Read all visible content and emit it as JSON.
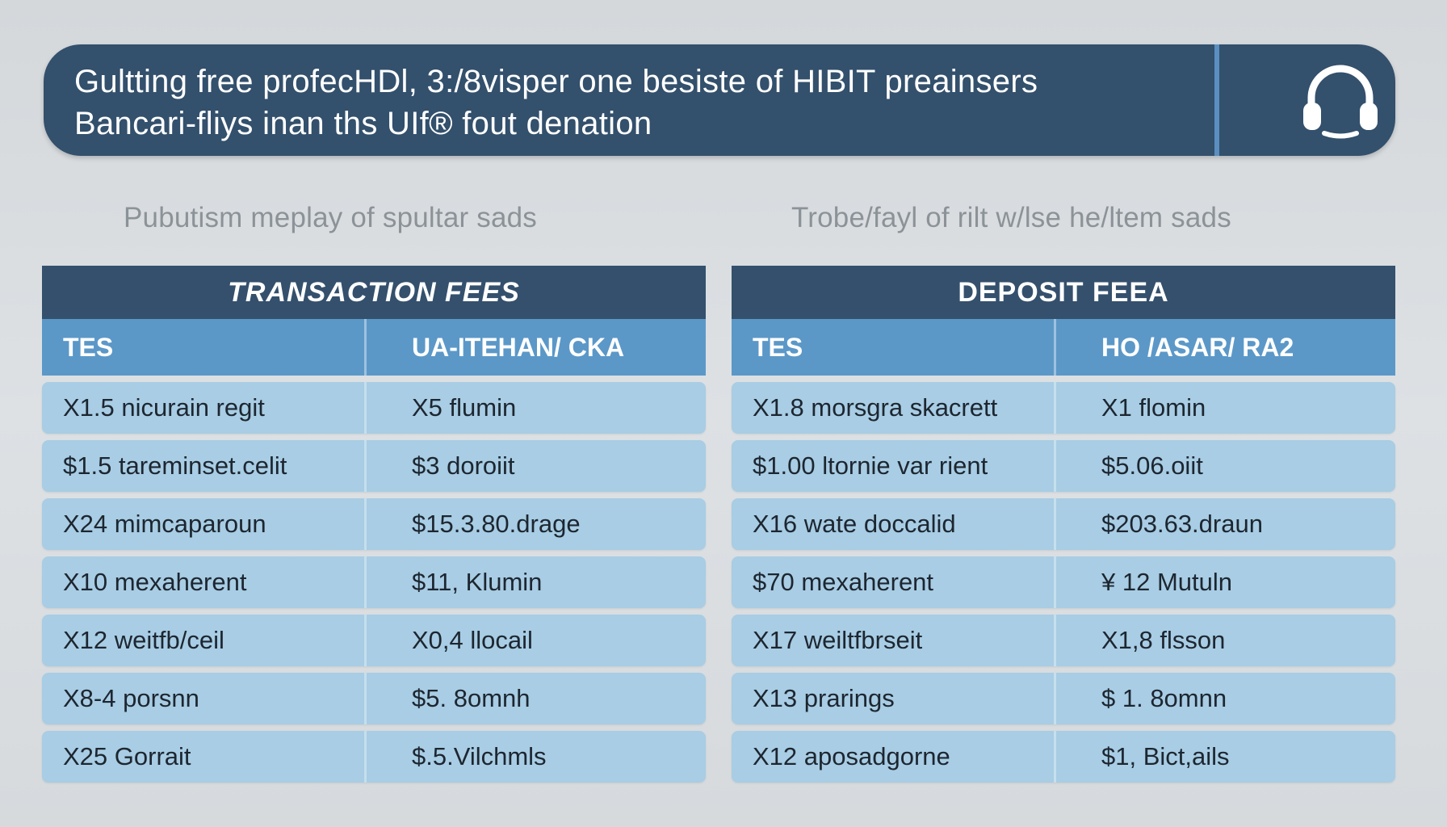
{
  "banner": {
    "line1": "Gultting free profecHDl, 3:/8visper one besiste of HIBIT  preainsers",
    "line2": "Bancari-fliys inan ths UIf® fout denation",
    "icon": "headset-icon"
  },
  "subtitles": {
    "left": "Pubutism meplay of spultar sads",
    "right": "Trobe/fayl of rilt w/lse he/ltem sads"
  },
  "transaction_fees": {
    "title": "TRANSACTION FEES",
    "col1": "TES",
    "col2": "UA-ITEHAN/ CKA",
    "rows": [
      {
        "c1": "X1.5 nicurain regit",
        "c2": "X5 flumin"
      },
      {
        "c1": "$1.5 tareminset.celit",
        "c2": "$3 doroiit"
      },
      {
        "c1": "X24 mimcaparoun",
        "c2": "$15.3.80.drage"
      },
      {
        "c1": "X10 mexaherent",
        "c2": "$11, Klumin"
      },
      {
        "c1": "X12 weitfb/ceil",
        "c2": "X0,4  llocail"
      },
      {
        "c1": "X8-4 porsnn",
        "c2": "$5.  8omnh"
      },
      {
        "c1": "X25 Gorrait",
        "c2": "$.5.Vilchmls"
      }
    ]
  },
  "deposit_fees": {
    "title": "DEPOSIT  FEEA",
    "col1": "TES",
    "col2": "HO /ASAR/  RA2",
    "rows": [
      {
        "c1": "X1.8 morsgra skacrett",
        "c2": "X1 flomin"
      },
      {
        "c1": "$1.00 ltornie var rient",
        "c2": "$5.06.oiit"
      },
      {
        "c1": "X16 wate doccalid",
        "c2": "$203.63.draun"
      },
      {
        "c1": "$70 mexaherent",
        "c2": "¥ 12  Mutuln"
      },
      {
        "c1": "X17 weiltfbrseit",
        "c2": "X1,8 flsson"
      },
      {
        "c1": "X13 prarings",
        "c2": "$ 1.  8omnn"
      },
      {
        "c1": "X12 aposadgorne",
        "c2": "$1, Bict,ails"
      }
    ]
  }
}
